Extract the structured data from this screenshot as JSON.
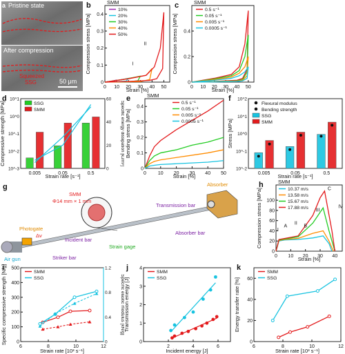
{
  "panels": {
    "a": {
      "letter": "a",
      "top_label": "Pristine state",
      "bottom_label": "After compression",
      "squeezed_label_line1": "Squeezed",
      "squeezed_label_line2": "SSG",
      "scale": "50 μm"
    },
    "b": {
      "letter": "b"
    },
    "c": {
      "letter": "c"
    },
    "d": {
      "letter": "d"
    },
    "e": {
      "letter": "e"
    },
    "f": {
      "letter": "f"
    },
    "g": {
      "letter": "g",
      "smm_label": "SMM",
      "smm_dim": "Φ14 mm × 1 mm",
      "absorber_label": "Absorber",
      "transmission_bar": "Transmission bar",
      "incident_bar": "Incident bar",
      "absorber_bar": "Absorber bar",
      "photogate": "Photogate",
      "delta_v": "Δv",
      "strain_gage": "Strain gage",
      "striker_bar": "Striker bar",
      "air_gun": "Air gun"
    },
    "h": {
      "letter": "h"
    },
    "i": {
      "letter": "i"
    },
    "j": {
      "letter": "j"
    },
    "k": {
      "letter": "k"
    }
  },
  "colors": {
    "red": "#e31a1c",
    "orange": "#ff8c00",
    "green": "#22cc22",
    "cyan": "#17c3e0",
    "purple": "#9c27b0",
    "bluegrey": "#4a6fa5"
  },
  "chart_data": [
    {
      "id": "b",
      "type": "line",
      "material_label": "SMM",
      "xlabel": "Strain [%]",
      "ylabel": "Compression stress [MPa]",
      "xlim": [
        0,
        55
      ],
      "ylim": [
        0,
        0.45
      ],
      "xticks": [
        0,
        10,
        20,
        30,
        40,
        50
      ],
      "yticks": [
        0,
        0.1,
        0.2,
        0.3,
        0.4
      ],
      "annotations": [
        "I",
        "II"
      ],
      "series": [
        {
          "name": "10%",
          "color": "#9c27b0",
          "x": [
            0,
            5,
            10,
            8,
            3,
            0
          ],
          "y": [
            0,
            0.005,
            0.012,
            0.004,
            0.001,
            0
          ]
        },
        {
          "name": "20%",
          "color": "#17c3e0",
          "x": [
            0,
            10,
            20,
            18,
            10,
            0
          ],
          "y": [
            0,
            0.01,
            0.022,
            0.006,
            0.002,
            0
          ]
        },
        {
          "name": "30%",
          "color": "#22cc22",
          "x": [
            0,
            15,
            30,
            28,
            20,
            0
          ],
          "y": [
            0,
            0.015,
            0.035,
            0.008,
            0.002,
            0
          ]
        },
        {
          "name": "40%",
          "color": "#ff8c00",
          "x": [
            0,
            20,
            35,
            40,
            38,
            30,
            0
          ],
          "y": [
            0,
            0.02,
            0.04,
            0.08,
            0.015,
            0.003,
            0
          ]
        },
        {
          "name": "50%",
          "color": "#e31a1c",
          "x": [
            0,
            20,
            35,
            42,
            47,
            50,
            49,
            44,
            38,
            20,
            0
          ],
          "y": [
            0,
            0.02,
            0.04,
            0.09,
            0.2,
            0.41,
            0.08,
            0.02,
            0.01,
            0.004,
            0
          ]
        }
      ]
    },
    {
      "id": "c",
      "type": "line",
      "material_label": "SMM",
      "xlabel": "Strain [%]",
      "ylabel": "Compression stress [MPa]",
      "xlim": [
        0,
        55
      ],
      "ylim": [
        0,
        0.6
      ],
      "xticks": [
        0,
        10,
        20,
        30,
        40,
        50
      ],
      "yticks": [
        0,
        0.2,
        0.4
      ],
      "series": [
        {
          "name": "0.5 s⁻¹",
          "color": "#e31a1c",
          "x": [
            0,
            20,
            35,
            42,
            47,
            50,
            49,
            45,
            40,
            20,
            0
          ],
          "y": [
            0,
            0.03,
            0.06,
            0.12,
            0.3,
            0.56,
            0.1,
            0.03,
            0.015,
            0.005,
            0
          ]
        },
        {
          "name": "0.05 s⁻¹",
          "color": "#22cc22",
          "x": [
            0,
            20,
            35,
            42,
            47,
            50,
            49,
            45,
            40,
            20,
            0
          ],
          "y": [
            0,
            0.025,
            0.05,
            0.09,
            0.2,
            0.37,
            0.08,
            0.02,
            0.01,
            0.004,
            0
          ]
        },
        {
          "name": "0.005 s⁻¹",
          "color": "#ff8c00",
          "x": [
            0,
            20,
            35,
            42,
            47,
            50,
            49,
            45,
            40,
            20,
            0
          ],
          "y": [
            0,
            0.02,
            0.04,
            0.07,
            0.12,
            0.2,
            0.05,
            0.015,
            0.008,
            0.003,
            0
          ]
        },
        {
          "name": "0.0005 s⁻¹",
          "color": "#17c3e0",
          "x": [
            0,
            20,
            35,
            42,
            47,
            50,
            49,
            45,
            40,
            20,
            0
          ],
          "y": [
            0,
            0.015,
            0.03,
            0.05,
            0.08,
            0.12,
            0.03,
            0.01,
            0.005,
            0.002,
            0
          ]
        }
      ]
    },
    {
      "id": "d",
      "type": "bar",
      "xlabel": "Strain rate [s⁻¹]",
      "ylabel": "Compressive strength [MPa]",
      "y2label": "Specific energy dissipation [kJ/m³]",
      "categories": [
        "0.005",
        "0.05",
        "0.5"
      ],
      "ylog": true,
      "ylim_exp": [
        -3,
        1
      ],
      "y2lim": [
        0,
        60
      ],
      "y2ticks": [
        0,
        20,
        40,
        60
      ],
      "series": [
        {
          "name": "SSG",
          "color": "#22cc22",
          "values": [
            0.004,
            0.02,
            0.4
          ],
          "line": [
            5,
            27,
            53
          ]
        },
        {
          "name": "SMM",
          "color": "#e31a1c",
          "values": [
            0.12,
            0.4,
            0.9
          ],
          "line": [
            7,
            20,
            55
          ]
        }
      ]
    },
    {
      "id": "e",
      "type": "line",
      "material_label": "SMM",
      "xlabel": "Strain [%]",
      "ylabel": "Bending stress [MPa]",
      "xlim": [
        0,
        50
      ],
      "ylim": [
        0,
        0.45
      ],
      "xticks": [
        0,
        10,
        20,
        30,
        40,
        50
      ],
      "yticks": [
        0,
        0.1,
        0.2,
        0.3,
        0.4
      ],
      "series": [
        {
          "name": "0.5 s⁻¹",
          "color": "#e31a1c",
          "x": [
            0,
            3,
            6,
            10,
            20,
            30,
            40,
            50
          ],
          "y": [
            0,
            0.08,
            0.14,
            0.18,
            0.25,
            0.31,
            0.37,
            0.44
          ]
        },
        {
          "name": "0.05 s⁻¹",
          "color": "#22cc22",
          "x": [
            0,
            3,
            6,
            10,
            20,
            30,
            40,
            50
          ],
          "y": [
            0,
            0.05,
            0.08,
            0.1,
            0.12,
            0.15,
            0.17,
            0.2
          ]
        },
        {
          "name": "0.005 s⁻¹",
          "color": "#ff8c00",
          "x": [
            0,
            3,
            6,
            10,
            20,
            30,
            40,
            50
          ],
          "y": [
            0,
            0.03,
            0.045,
            0.055,
            0.07,
            0.085,
            0.1,
            0.12
          ]
        },
        {
          "name": "0.0005 s⁻¹",
          "color": "#17c3e0",
          "x": [
            0,
            3,
            6,
            10,
            20,
            30,
            40,
            50
          ],
          "y": [
            0,
            0.015,
            0.02,
            0.025,
            0.03,
            0.035,
            0.04,
            0.05
          ]
        }
      ]
    },
    {
      "id": "f",
      "type": "bar",
      "xlabel": "Strain rate [s⁻¹]",
      "ylabel": "Stress [MPa]",
      "categories": [
        "0.005",
        "0.05",
        "0.5"
      ],
      "ylog": true,
      "ylim_exp": [
        -2,
        2
      ],
      "legend": [
        "Flexural modulus",
        "Bending strength",
        "SSG",
        "SMM"
      ],
      "series": [
        {
          "name": "SSG",
          "color": "#17c3e0",
          "modulus": [
            0.05,
            0.12,
            0.7
          ],
          "strength": [
            0.08,
            0.18,
            0.9
          ]
        },
        {
          "name": "SMM",
          "color": "#e31a1c",
          "modulus": [
            0.25,
            0.8,
            3.0
          ],
          "strength": [
            0.4,
            1.2,
            4.5
          ]
        }
      ]
    },
    {
      "id": "h",
      "type": "line",
      "material_label": "SMM",
      "xlabel": "Strain [%]",
      "ylabel": "Compression stress [MPa]",
      "xlim": [
        0,
        45
      ],
      "ylim": [
        0,
        130
      ],
      "xticks": [
        0,
        10,
        20,
        30,
        40
      ],
      "yticks": [
        0,
        20,
        40,
        60,
        80,
        100
      ],
      "annotations": [
        "I",
        "A",
        "II",
        "B",
        "III",
        "C",
        "IV"
      ],
      "series": [
        {
          "name": "10.37 m/s",
          "color": "#17c3e0",
          "x": [
            0,
            2,
            6,
            15,
            25,
            32,
            36,
            38
          ],
          "y": [
            0,
            20,
            22,
            23,
            26,
            30,
            15,
            0
          ]
        },
        {
          "name": "13.58 m/s",
          "color": "#ff8c00",
          "x": [
            0,
            2,
            6,
            15,
            25,
            32,
            36,
            39
          ],
          "y": [
            0,
            21,
            23,
            25,
            35,
            40,
            20,
            0
          ]
        },
        {
          "name": "15.67 m/s",
          "color": "#22cc22",
          "x": [
            0,
            2,
            6,
            15,
            25,
            32,
            36,
            40
          ],
          "y": [
            0,
            22,
            24,
            28,
            55,
            85,
            40,
            0
          ]
        },
        {
          "name": "17.88 m/s",
          "color": "#e31a1c",
          "x": [
            0,
            2,
            6,
            15,
            25,
            30,
            33,
            38,
            40
          ],
          "y": [
            0,
            23,
            25,
            30,
            70,
            105,
            118,
            40,
            0
          ]
        }
      ]
    },
    {
      "id": "i",
      "type": "line",
      "xlabel": "Strain rate [10³ s⁻¹]",
      "ylabel": "Specific compressive strength [N/g]",
      "y2label": "Specific elastic modulus [kN/g]",
      "xlim": [
        6,
        12
      ],
      "ylim": [
        0,
        500
      ],
      "y2lim": [
        0,
        1.2
      ],
      "xticks": [
        6,
        8,
        10,
        12
      ],
      "yticks": [
        0,
        100,
        200,
        300,
        400,
        500
      ],
      "y2ticks": [
        0,
        0.4,
        0.8,
        1.2
      ],
      "series": [
        {
          "name": "SMM",
          "color": "#e31a1c",
          "x": [
            7.6,
            8.7,
            9.6,
            11.0
          ],
          "y": [
            130,
            165,
            205,
            210
          ],
          "y2": [
            0.2,
            0.24,
            0.28,
            0.32
          ]
        },
        {
          "name": "SSG",
          "color": "#17c3e0",
          "x": [
            7.4,
            8.5,
            9.9,
            11.5
          ],
          "y": [
            120,
            185,
            300,
            340
          ],
          "y2": [
            0.25,
            0.45,
            0.62,
            0.78
          ]
        }
      ]
    },
    {
      "id": "j",
      "type": "scatter",
      "xlabel": "Incident energy [J]",
      "ylabel": "Transmission energy [J]",
      "xlim": [
        0,
        7
      ],
      "ylim": [
        0,
        4
      ],
      "xticks": [
        2,
        4,
        6
      ],
      "yticks": [
        0,
        1,
        2,
        3,
        4
      ],
      "series": [
        {
          "name": "SMM",
          "color": "#e31a1c",
          "x": [
            2.3,
            2.5,
            3.1,
            3.6,
            4.2,
            4.7,
            5.1,
            5.6,
            5.9
          ],
          "y": [
            0.2,
            0.3,
            0.45,
            0.55,
            0.7,
            0.85,
            1.0,
            1.2,
            1.35
          ]
        },
        {
          "name": "SSG",
          "color": "#17c3e0",
          "x": [
            2.2,
            2.5,
            3.3,
            4.0,
            4.8,
            5.4,
            5.8
          ],
          "y": [
            0.6,
            0.9,
            1.3,
            1.6,
            2.3,
            2.8,
            3.5
          ]
        }
      ]
    },
    {
      "id": "k",
      "type": "line",
      "xlabel": "Strain rate [10³ s⁻¹]",
      "ylabel": "Energy transfer rate [%]",
      "xlim": [
        6,
        12
      ],
      "ylim": [
        0,
        70
      ],
      "xticks": [
        6,
        8,
        10,
        12
      ],
      "yticks": [
        0,
        20,
        40,
        60
      ],
      "series": [
        {
          "name": "SMM",
          "color": "#e31a1c",
          "x": [
            7.7,
            8.5,
            9.7,
            11.2
          ],
          "y": [
            4,
            9,
            14,
            24
          ]
        },
        {
          "name": "SSG",
          "color": "#17c3e0",
          "x": [
            7.3,
            8.3,
            10.4,
            11.6
          ],
          "y": [
            20,
            43,
            48,
            59
          ]
        }
      ]
    }
  ]
}
